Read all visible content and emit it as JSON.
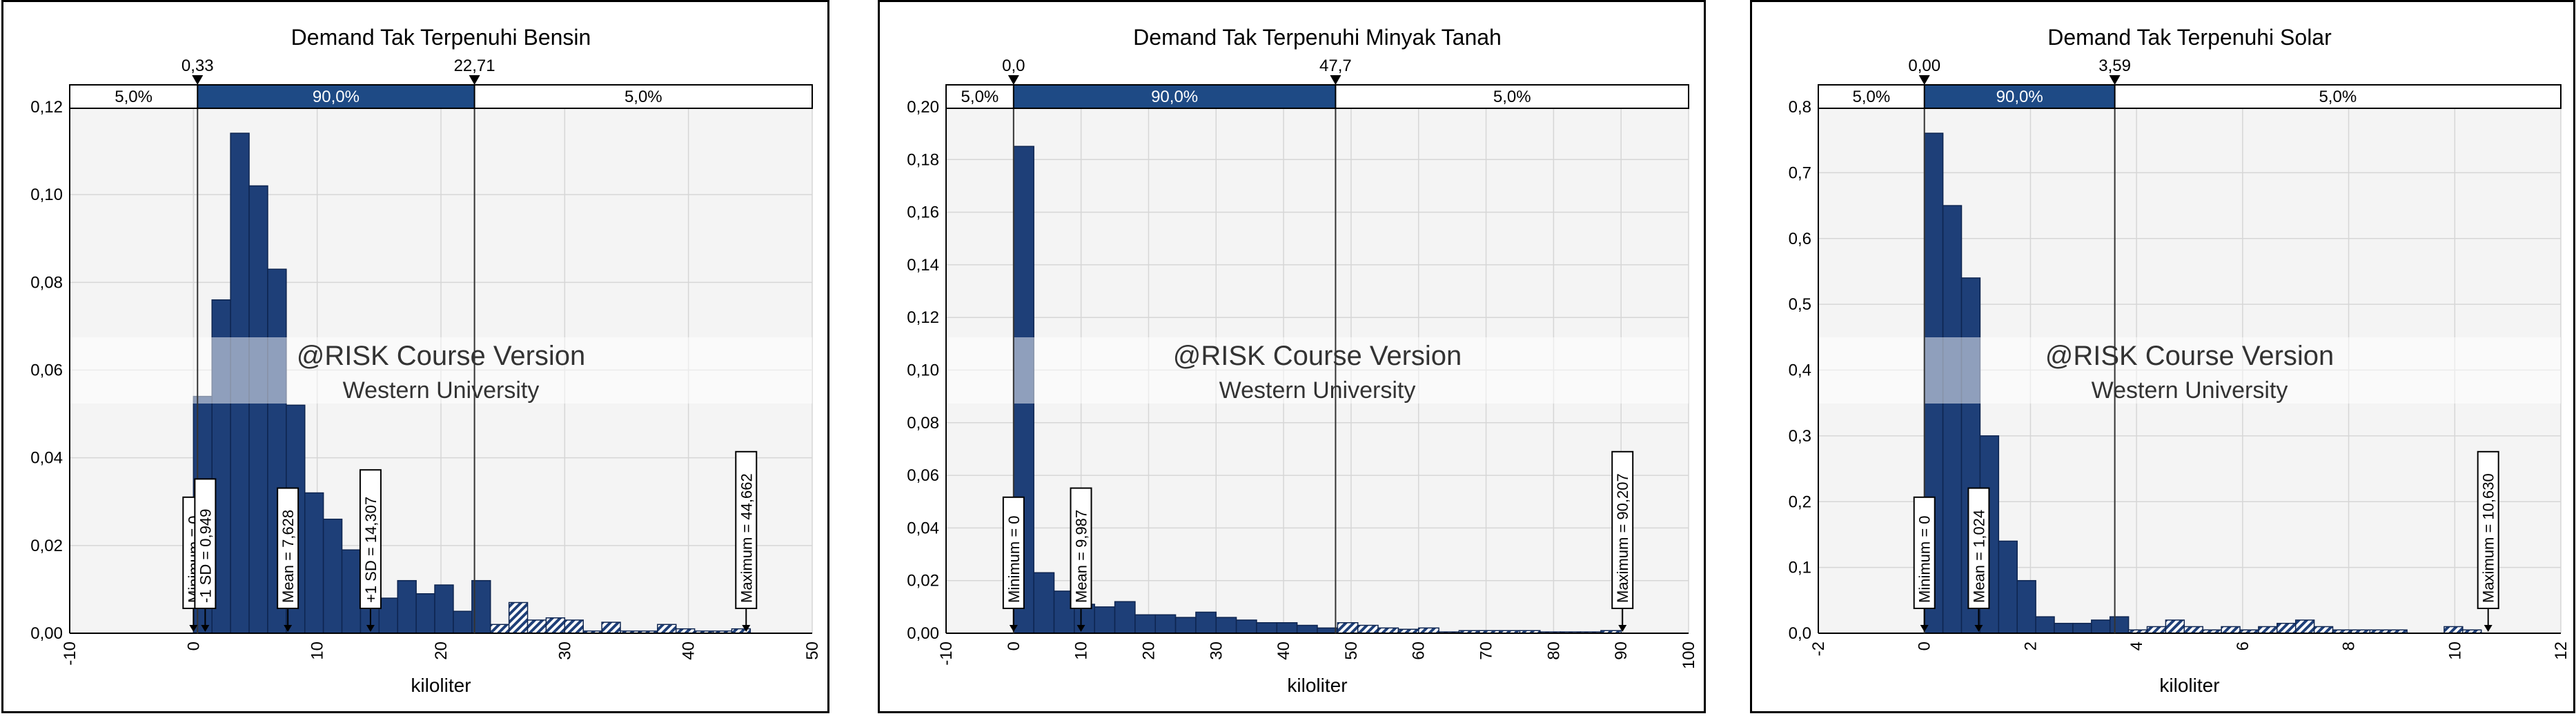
{
  "colors": {
    "bar": "#1e3f78",
    "bar_edge": "#0e2550",
    "plot_bg": "#f4f4f4",
    "grid": "#d6d6d6",
    "band_fill": "#1e4a85"
  },
  "watermark": {
    "line1": "@RISK Course Version",
    "line2": "Western University"
  },
  "chart_data": [
    {
      "type": "bar",
      "title": "Demand Tak Terpenuhi Bensin",
      "xlabel": "kiloliter",
      "ylabel": "",
      "xlim": [
        -10,
        50
      ],
      "ylim": [
        0,
        0.12
      ],
      "x_ticks": [
        -10,
        0,
        10,
        20,
        30,
        40,
        50
      ],
      "x_tick_labels": [
        "-10",
        "0",
        "10",
        "20",
        "30",
        "40",
        "50"
      ],
      "y_ticks": [
        0,
        0.02,
        0.04,
        0.06,
        0.08,
        0.1,
        0.12
      ],
      "y_tick_labels": [
        "0,00",
        "0,02",
        "0,04",
        "0,06",
        "0,08",
        "0,10",
        "0,12"
      ],
      "bin_width": 1.5,
      "bins_start": [
        0,
        1.5,
        3,
        4.5,
        6,
        7.5,
        9,
        10.5,
        12,
        13.5,
        15,
        16.5,
        18,
        19.5,
        21,
        22.5,
        24,
        25.5,
        27,
        28.5,
        30,
        31.5,
        33,
        34.5,
        36,
        37.5,
        39,
        40.5,
        42,
        43.5
      ],
      "values": [
        0.054,
        0.076,
        0.114,
        0.102,
        0.083,
        0.052,
        0.032,
        0.026,
        0.019,
        0.014,
        0.008,
        0.012,
        0.009,
        0.011,
        0.005,
        0.012,
        0.002,
        0.007,
        0.003,
        0.0035,
        0.003,
        0.0005,
        0.0025,
        0.0005,
        0.0005,
        0.002,
        0.001,
        0.0005,
        0.0005,
        0.001
      ],
      "band": {
        "left_value": "0,33",
        "right_value": "22,71",
        "left_pct": "5,0%",
        "mid_pct": "90,0%",
        "right_pct": "5,0%",
        "left": 0.33,
        "right": 22.71
      },
      "markers": [
        {
          "label": "Minimum = 0",
          "x": 0,
          "y": 0.02
        },
        {
          "label": "-1 SD = 0,949",
          "x": 0.949,
          "y": 0.02
        },
        {
          "label": "Mean = 7,628",
          "x": 7.628,
          "y": 0.02
        },
        {
          "label": "+1 SD = 14,307",
          "x": 14.307,
          "y": 0.02
        },
        {
          "label": "Maximum = 44,662",
          "x": 44.662,
          "y": 0.02
        }
      ]
    },
    {
      "type": "bar",
      "title": "Demand Tak Terpenuhi Minyak Tanah",
      "xlabel": "kiloliter",
      "ylabel": "",
      "xlim": [
        -10,
        100
      ],
      "ylim": [
        0,
        0.2
      ],
      "x_ticks": [
        -10,
        0,
        10,
        20,
        30,
        40,
        50,
        60,
        70,
        80,
        90,
        100
      ],
      "x_tick_labels": [
        "-10",
        "0",
        "10",
        "20",
        "30",
        "40",
        "50",
        "60",
        "70",
        "80",
        "90",
        "100"
      ],
      "y_ticks": [
        0,
        0.02,
        0.04,
        0.06,
        0.08,
        0.1,
        0.12,
        0.14,
        0.16,
        0.18,
        0.2
      ],
      "y_tick_labels": [
        "0,00",
        "0,02",
        "0,04",
        "0,06",
        "0,08",
        "0,10",
        "0,12",
        "0,14",
        "0,16",
        "0,18",
        "0,20"
      ],
      "bin_width": 3,
      "bins_start": [
        0,
        3,
        6,
        9,
        12,
        15,
        18,
        21,
        24,
        27,
        30,
        33,
        36,
        39,
        42,
        45,
        48,
        51,
        54,
        57,
        60,
        63,
        66,
        69,
        72,
        75,
        78,
        81,
        84,
        87
      ],
      "values": [
        0.185,
        0.023,
        0.016,
        0.011,
        0.01,
        0.012,
        0.007,
        0.007,
        0.006,
        0.008,
        0.006,
        0.005,
        0.004,
        0.004,
        0.003,
        0.002,
        0.004,
        0.003,
        0.002,
        0.0015,
        0.002,
        0.0005,
        0.001,
        0.001,
        0.001,
        0.001,
        0.0005,
        0.0005,
        0.0005,
        0.001
      ],
      "band": {
        "left_value": "0,0",
        "right_value": "47,7",
        "left_pct": "5,0%",
        "mid_pct": "90,0%",
        "right_pct": "5,0%",
        "left": 0,
        "right": 47.7
      },
      "markers": [
        {
          "label": "Minimum = 0",
          "x": 0,
          "y": 0.02
        },
        {
          "label": "Mean = 9,987",
          "x": 9.987,
          "y": 0.02
        },
        {
          "label": "Maximum = 90,207",
          "x": 90.207,
          "y": 0.02
        }
      ]
    },
    {
      "type": "bar",
      "title": "Demand Tak Terpenuhi Solar",
      "xlabel": "kiloliter",
      "ylabel": "",
      "xlim": [
        -2,
        12
      ],
      "ylim": [
        0,
        0.8
      ],
      "x_ticks": [
        -2,
        0,
        2,
        4,
        6,
        8,
        10,
        12
      ],
      "x_tick_labels": [
        "-2",
        "0",
        "2",
        "4",
        "6",
        "8",
        "10",
        "12"
      ],
      "y_ticks": [
        0,
        0.1,
        0.2,
        0.3,
        0.4,
        0.5,
        0.6,
        0.7,
        0.8
      ],
      "y_tick_labels": [
        "0,0",
        "0,1",
        "0,2",
        "0,3",
        "0,4",
        "0,5",
        "0,6",
        "0,7",
        "0,8"
      ],
      "bin_width": 0.35,
      "bins_start": [
        0,
        0.35,
        0.7,
        1.05,
        1.4,
        1.75,
        2.1,
        2.45,
        2.8,
        3.15,
        3.5,
        3.85,
        4.2,
        4.55,
        4.9,
        5.25,
        5.6,
        5.95,
        6.3,
        6.65,
        7.0,
        7.35,
        7.7,
        8.05,
        8.4,
        8.75,
        9.1,
        9.45,
        9.8,
        10.15
      ],
      "values": [
        0.76,
        0.65,
        0.54,
        0.3,
        0.14,
        0.08,
        0.025,
        0.015,
        0.015,
        0.02,
        0.025,
        0.005,
        0.01,
        0.02,
        0.01,
        0.005,
        0.01,
        0.005,
        0.01,
        0.015,
        0.02,
        0.01,
        0.005,
        0.005,
        0.005,
        0.005,
        0.0,
        0.0,
        0.01,
        0.005
      ],
      "band": {
        "left_value": "0,00",
        "right_value": "3,59",
        "left_pct": "5,0%",
        "mid_pct": "90,0%",
        "right_pct": "5,0%",
        "left": 0,
        "right": 3.59
      },
      "markers": [
        {
          "label": "Minimum = 0",
          "x": 0,
          "y": 0.02
        },
        {
          "label": "Mean = 1,024",
          "x": 1.024,
          "y": 0.02
        },
        {
          "label": "Maximum = 10,630",
          "x": 10.63,
          "y": 0.02
        }
      ]
    }
  ]
}
